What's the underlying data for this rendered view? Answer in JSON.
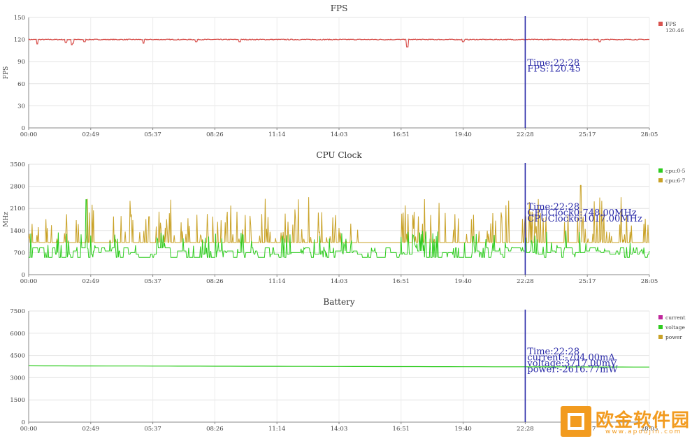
{
  "x_ticks": [
    "00:00",
    "02:49",
    "05:37",
    "08:26",
    "11:14",
    "14:03",
    "16:51",
    "19:40",
    "22:28",
    "25:17",
    "28:05"
  ],
  "cursor": {
    "time": "22:28"
  },
  "chart_data": [
    {
      "type": "line",
      "title": "FPS",
      "ylabel": "FPS",
      "ylim": [
        0,
        150
      ],
      "y_ticks": [
        0,
        30,
        60,
        90,
        120,
        150
      ],
      "x_ticks": [
        "00:00",
        "02:49",
        "05:37",
        "08:26",
        "11:14",
        "14:03",
        "16:51",
        "19:40",
        "22:28",
        "25:17",
        "28:05"
      ],
      "grid": true,
      "legend": "right",
      "series": [
        {
          "name": "FPS",
          "legend_value": "120.46",
          "color": "#d9534f",
          "baseline": 120,
          "dips": [
            {
              "t": 0.014,
              "v": 114
            },
            {
              "t": 0.06,
              "v": 116
            },
            {
              "t": 0.07,
              "v": 113
            },
            {
              "t": 0.072,
              "v": 115
            },
            {
              "t": 0.09,
              "v": 117
            },
            {
              "t": 0.185,
              "v": 115
            },
            {
              "t": 0.27,
              "v": 117
            },
            {
              "t": 0.34,
              "v": 117
            },
            {
              "t": 0.61,
              "v": 110
            },
            {
              "t": 0.7,
              "v": 117
            },
            {
              "t": 0.92,
              "v": 117
            }
          ]
        }
      ],
      "tooltip": [
        "Time:22:28",
        "FPS:120.45"
      ]
    },
    {
      "type": "line",
      "title": "CPU Clock",
      "ylabel": "MHz",
      "ylim": [
        0,
        3500
      ],
      "y_ticks": [
        0,
        700,
        1400,
        2100,
        2800,
        3500
      ],
      "x_ticks": [
        "00:00",
        "02:49",
        "05:37",
        "08:26",
        "11:14",
        "14:03",
        "16:51",
        "19:40",
        "22:28",
        "25:17",
        "28:05"
      ],
      "grid": true,
      "legend": "right",
      "series": [
        {
          "name": "cpu:0-5",
          "color": "#2ecc1f",
          "baseline": 550
        },
        {
          "name": "cpu:6-7",
          "color": "#c9a227",
          "baseline": 1017
        }
      ],
      "tooltip": [
        "Time:22:28",
        "CPUClock0:748.00MHz",
        "CPUClock6:1017.00MHz"
      ]
    },
    {
      "type": "line",
      "title": "Battery",
      "ylabel": "",
      "ylim": [
        0,
        7500
      ],
      "y_ticks": [
        0,
        1500,
        3000,
        4500,
        6000,
        7500
      ],
      "x_ticks": [
        "00:00",
        "02:49",
        "05:37",
        "08:26",
        "11:14",
        "14:03",
        "16:51",
        "19:40",
        "22:28",
        "25:17",
        "28:05"
      ],
      "grid": true,
      "legend": "right",
      "series": [
        {
          "name": "current",
          "color": "#c0279c"
        },
        {
          "name": "voltage",
          "color": "#2ecc1f",
          "start": 3800,
          "end": 3717
        },
        {
          "name": "power",
          "color": "#c9a227"
        }
      ],
      "tooltip": [
        "Time:22:28",
        "current:-704.00mA",
        "voltage:3717.00mV",
        "power:-2616.77mW"
      ]
    }
  ],
  "watermark": {
    "text": "欧金软件园",
    "url": "www.apoujin.com"
  }
}
